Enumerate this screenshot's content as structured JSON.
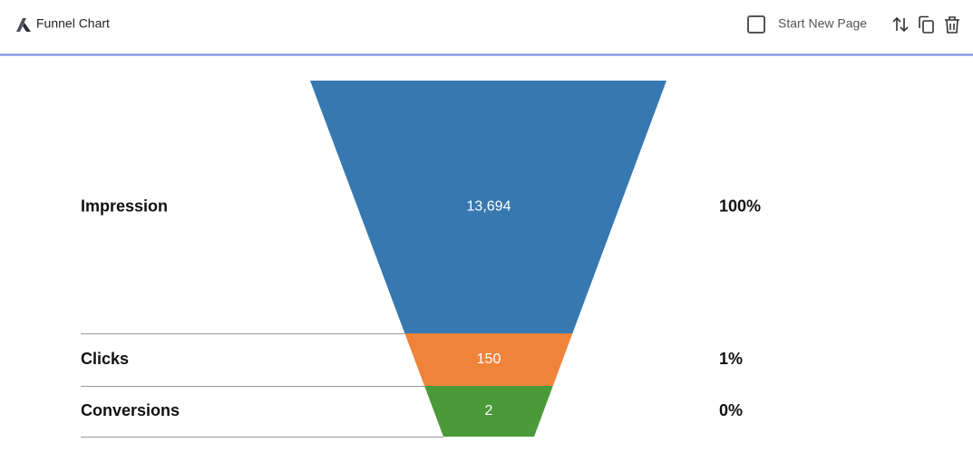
{
  "header": {
    "title": "Funnel Chart",
    "checkbox_label": "Start New Page"
  },
  "chart_data": {
    "type": "funnel",
    "categories": [
      "Impression",
      "Clicks",
      "Conversions"
    ],
    "values": [
      13694,
      150,
      2
    ],
    "value_labels": [
      "13,694",
      "150",
      "2"
    ],
    "shares": [
      "100%",
      "1%",
      "0%"
    ],
    "colors": [
      "#3778b0",
      "#f0833a",
      "#4b9a3a"
    ]
  }
}
